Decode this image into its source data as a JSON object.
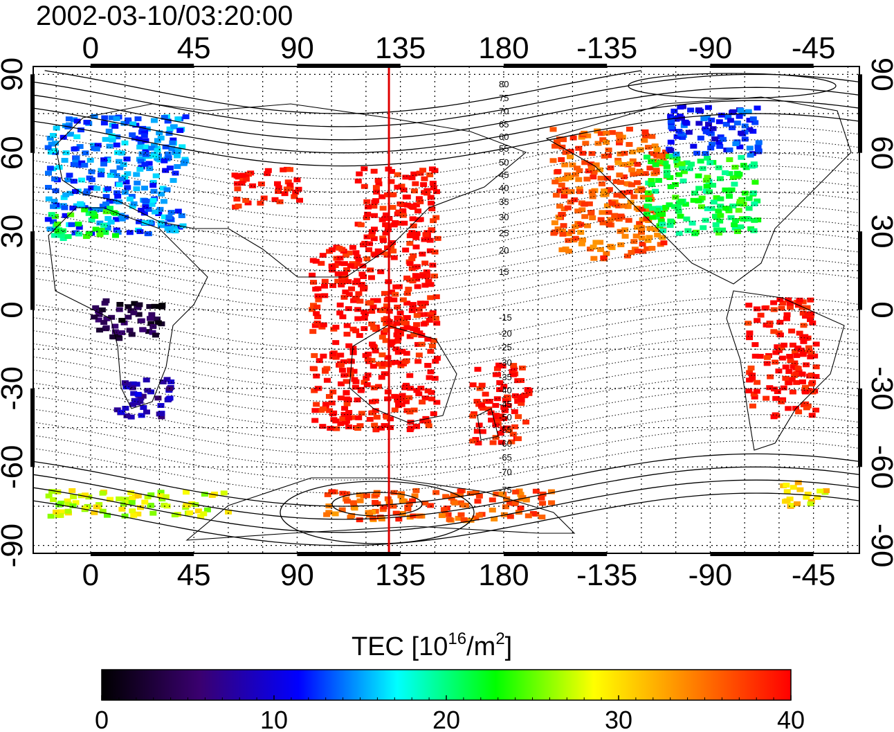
{
  "title": "2002-03-10/03:20:00",
  "axes": {
    "x_top_labels": [
      "0",
      "45",
      "90",
      "135",
      "180",
      "-135",
      "-90",
      "-45"
    ],
    "x_bottom_labels": [
      "0",
      "45",
      "90",
      "135",
      "180",
      "-135",
      "-90",
      "-45"
    ],
    "y_left_labels": [
      "90",
      "60",
      "30",
      "0",
      "-30",
      "-60",
      "-90"
    ],
    "y_right_labels": [
      "90",
      "60",
      "30",
      "0",
      "-30",
      "-60",
      "-90"
    ],
    "lon_range": [
      -25,
      335
    ],
    "lat_range": [
      -93,
      93
    ],
    "grid": "dotted, every 15 degrees"
  },
  "map": {
    "marker_longitude": 130,
    "marker_color": "#e00000",
    "magnetic_latitude_labels": [
      "80",
      "75",
      "70",
      "65",
      "60",
      "55",
      "50",
      "45",
      "40",
      "35",
      "30",
      "25",
      "20",
      "15",
      "-15",
      "-20",
      "-25",
      "-30",
      "-35",
      "-40",
      "-45",
      "-50",
      "-55",
      "-60",
      "-65",
      "-70",
      "-75"
    ]
  },
  "colorbar": {
    "label": "TEC  [10",
    "label_sup1": "16",
    "label_mid": "/m",
    "label_sup2": "2",
    "label_end": "]",
    "ticks": [
      "0",
      "10",
      "20",
      "30",
      "40"
    ],
    "range": [
      0,
      40
    ],
    "colors": [
      "#000000",
      "#3a0070",
      "#0000ff",
      "#00ffff",
      "#00ff00",
      "#ffff00",
      "#ff8000",
      "#ff0000"
    ]
  },
  "chart_data": {
    "type": "heatmap",
    "variable": "TEC",
    "regions": [
      {
        "lon": [
          -20,
          40
        ],
        "lat": [
          30,
          75
        ],
        "tec": 14
      },
      {
        "lon": [
          -20,
          10
        ],
        "lat": [
          28,
          40
        ],
        "tec": 22
      },
      {
        "lon": [
          0,
          30
        ],
        "lat": [
          -10,
          5
        ],
        "tec": 3
      },
      {
        "lon": [
          10,
          35
        ],
        "lat": [
          -40,
          -25
        ],
        "tec": 8
      },
      {
        "lon": [
          60,
          90
        ],
        "lat": [
          40,
          55
        ],
        "tec": 40
      },
      {
        "lon": [
          115,
          150
        ],
        "lat": [
          25,
          55
        ],
        "tec": 40
      },
      {
        "lon": [
          95,
          150
        ],
        "lat": [
          -45,
          25
        ],
        "tec": 40
      },
      {
        "lon": [
          165,
          190
        ],
        "lat": [
          -50,
          -20
        ],
        "tec": 40
      },
      {
        "lon": [
          200,
          250
        ],
        "lat": [
          20,
          70
        ],
        "tec": 36
      },
      {
        "lon": [
          240,
          290
        ],
        "lat": [
          30,
          60
        ],
        "tec": 22
      },
      {
        "lon": [
          250,
          290
        ],
        "lat": [
          60,
          80
        ],
        "tec": 12
      },
      {
        "lon": [
          285,
          315
        ],
        "lat": [
          -40,
          5
        ],
        "tec": 40
      },
      {
        "lon": [
          -20,
          60
        ],
        "lat": [
          -78,
          -68
        ],
        "tec": 28
      },
      {
        "lon": [
          100,
          200
        ],
        "lat": [
          -80,
          -68
        ],
        "tec": 36
      },
      {
        "lon": [
          300,
          320
        ],
        "lat": [
          -75,
          -65
        ],
        "tec": 30
      }
    ]
  }
}
